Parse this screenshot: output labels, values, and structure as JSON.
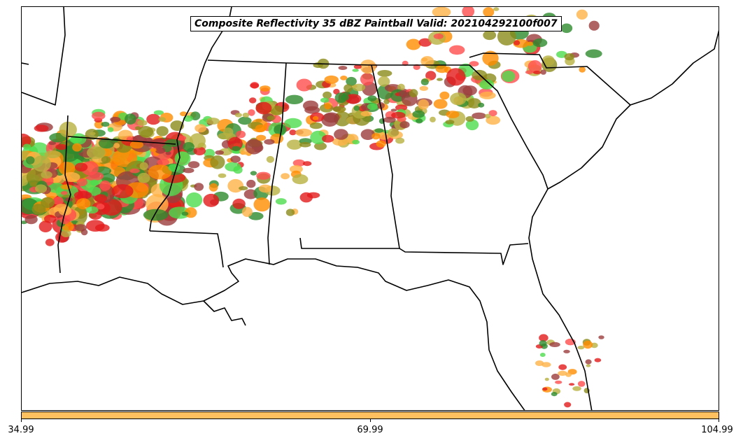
{
  "title": "Composite Reflectivity 35 dBZ Paintball Valid: 202104292100f007",
  "colorbar": {
    "color": "#ffc060",
    "tick_labels": [
      "34.99",
      "69.99",
      "104.99"
    ]
  },
  "member_colors": [
    "#ff4d4d",
    "#e31a1c",
    "#ff8c00",
    "#ffb347",
    "#4ddc4d",
    "#2e8b2e",
    "#b8b040",
    "#9c3c3c",
    "#8b8b1a"
  ],
  "map": {
    "region": "southeastern-united-states",
    "land_color": "#ffffff",
    "boundary_color": "#000000"
  }
}
